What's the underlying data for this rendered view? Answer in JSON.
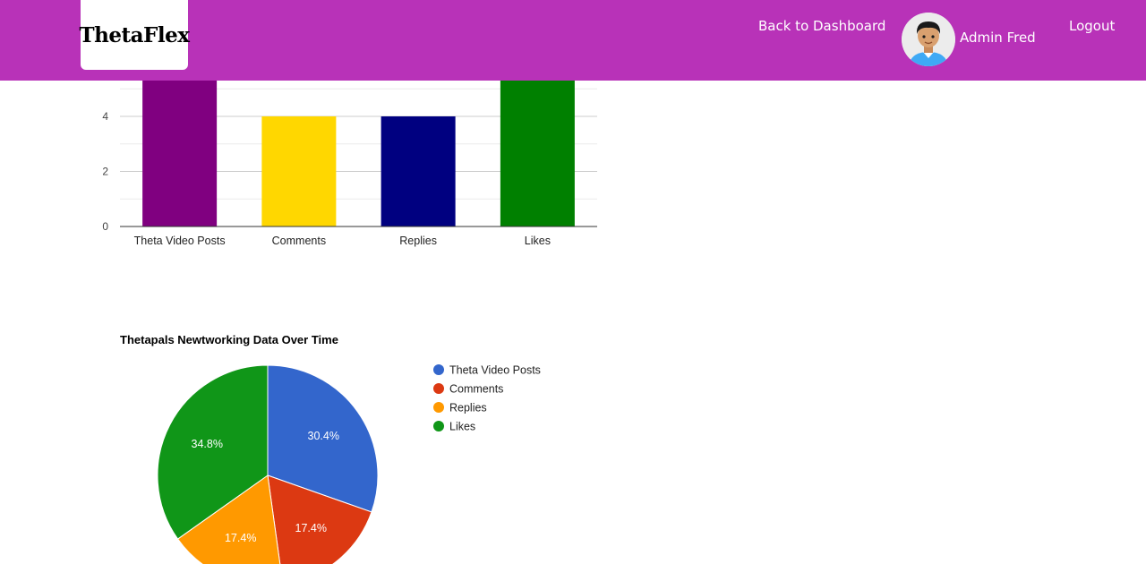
{
  "header": {
    "logo": "ThetaFlex",
    "back_link": "Back to Dashboard",
    "user_name": "Admin Fred",
    "logout": "Logout"
  },
  "colors": {
    "navbar": "#b832b8"
  },
  "chart_data": [
    {
      "type": "bar",
      "categories": [
        "Theta Video Posts",
        "Comments",
        "Replies",
        "Likes"
      ],
      "values": [
        7,
        4,
        4,
        8
      ],
      "colors": [
        "#800080",
        "#ffd700",
        "#000080",
        "#008000"
      ],
      "yticks": [
        0,
        2,
        4
      ],
      "ylim": [
        0,
        8
      ],
      "grid": true
    },
    {
      "type": "pie",
      "title": "Thetapals Newtworking Data Over Time",
      "labels": [
        "Theta Video Posts",
        "Comments",
        "Replies",
        "Likes"
      ],
      "values": [
        30.4,
        17.4,
        17.4,
        34.8
      ],
      "percent_labels": [
        "30.4%",
        "17.4%",
        "17.4%",
        "34.8%"
      ],
      "colors": [
        "#3366cc",
        "#dc3912",
        "#ff9900",
        "#109618"
      ],
      "legend": "right"
    }
  ]
}
